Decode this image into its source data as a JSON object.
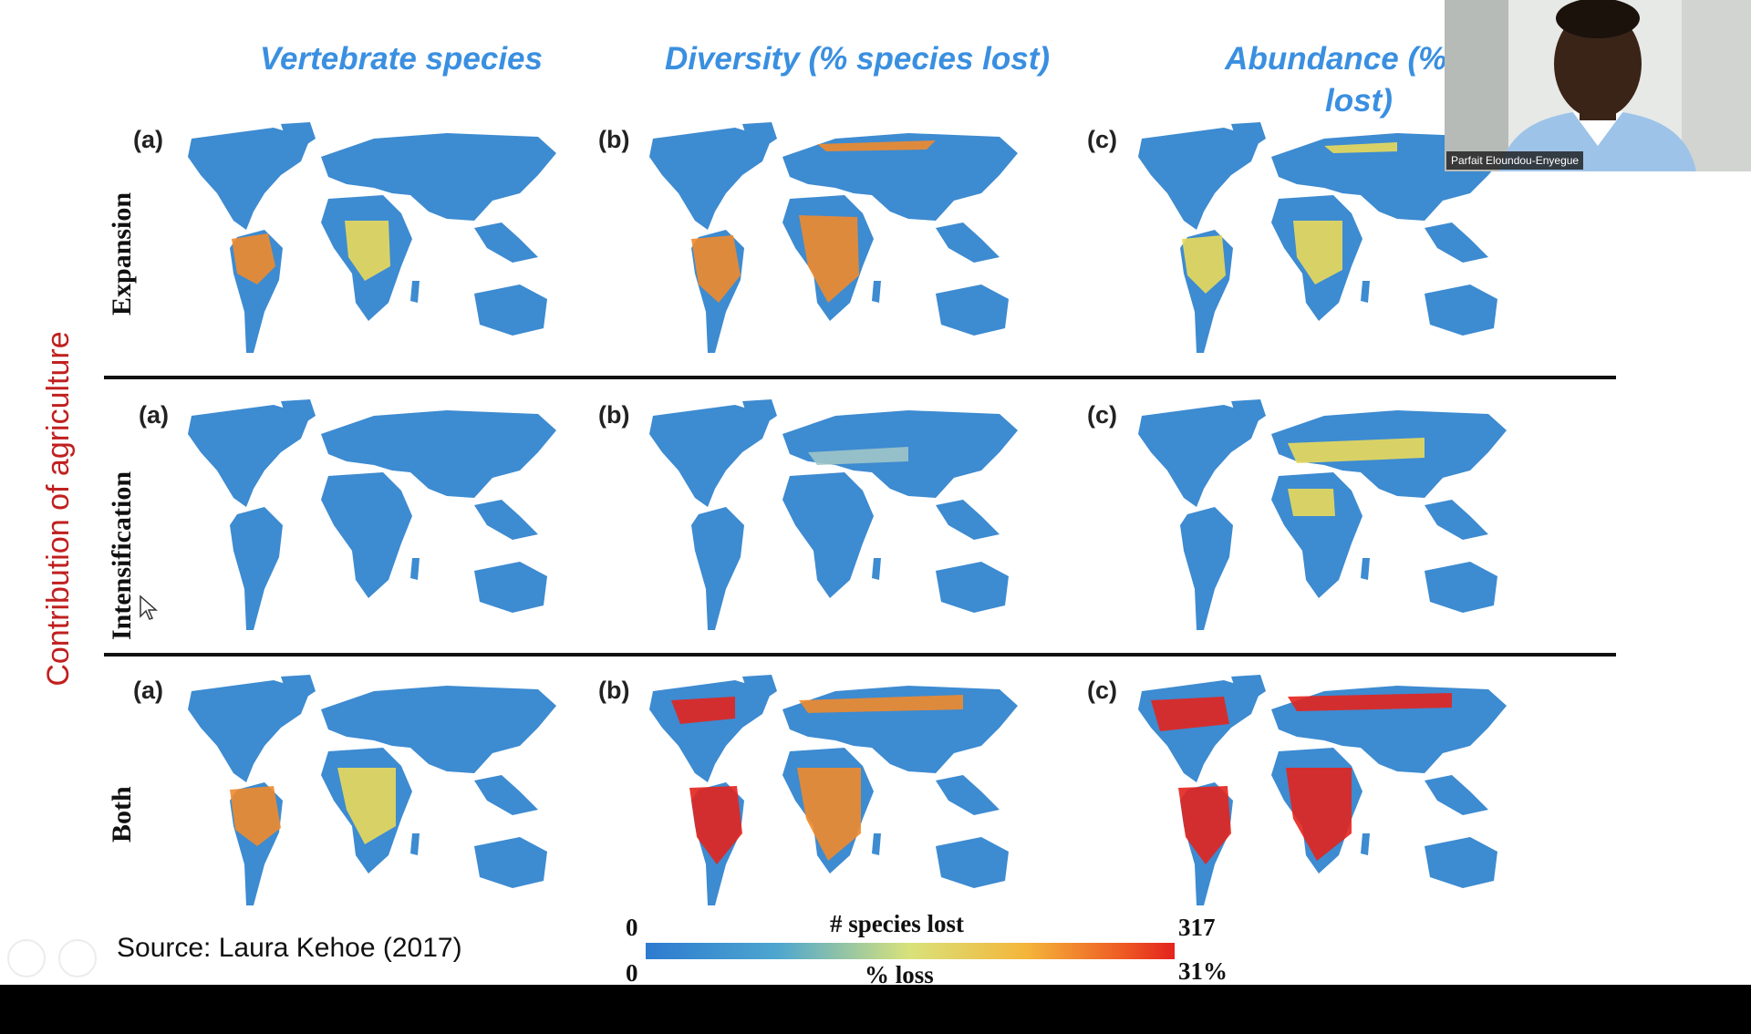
{
  "slide": {
    "headers": [
      "Vertebrate species",
      "Diversity (% species lost)",
      "Abundance (% sp\nlost)"
    ],
    "y_axis_title": "Contribution of agriculture",
    "rows": [
      {
        "label": "Expansion",
        "panels": [
          "(a)",
          "(b)",
          "(c)"
        ]
      },
      {
        "label": "Intensification",
        "panels": [
          "(a)",
          "(b)",
          "(c)"
        ]
      },
      {
        "label": "Both",
        "panels": [
          "(a)",
          "(b)",
          "(c)"
        ]
      }
    ],
    "source": "Source: Laura Kehoe (2017)",
    "legend": {
      "top_title": "# species lost",
      "bottom_title": "% loss",
      "top_min": "0",
      "top_max": "317",
      "bottom_min": "0",
      "bottom_max": "31%"
    }
  },
  "webcam": {
    "participant_name": "Parfait Eloundou-Enyegue"
  },
  "colors": {
    "header_blue": "#3a8fe0",
    "axis_title_red": "#c0201f",
    "map_base_blue": "#3d8bd1",
    "hot_red": "#e3231d",
    "warm_orange": "#f08a2c",
    "yellow": "#e9d95a"
  },
  "icons": [
    "cursor-arrow-icon",
    "player-control-icon"
  ]
}
